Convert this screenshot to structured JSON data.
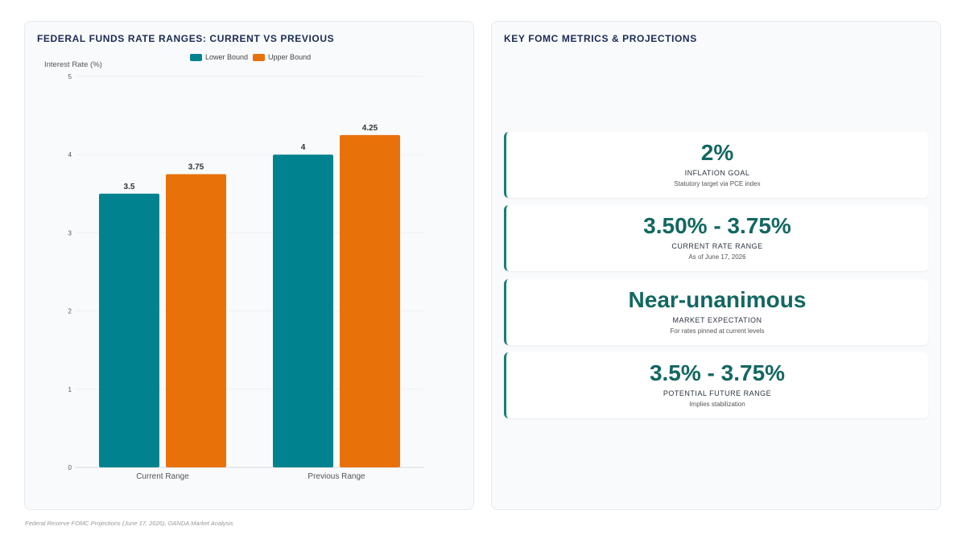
{
  "colors": {
    "lower_bound": "#00838f",
    "upper_bound": "#e8710a",
    "accent": "#1a7d77",
    "title": "#1c2a52"
  },
  "left_panel": {
    "title": "FEDERAL FUNDS RATE RANGES: CURRENT VS PREVIOUS"
  },
  "chart_data": {
    "type": "bar",
    "categories": [
      "Current Range",
      "Previous Range"
    ],
    "series": [
      {
        "name": "Lower Bound",
        "values": [
          3.5,
          4
        ]
      },
      {
        "name": "Upper Bound",
        "values": [
          3.75,
          4.25
        ]
      }
    ],
    "ylabel": "Interest Rate (%)",
    "xlabel": "",
    "ylim": [
      0,
      5
    ],
    "yticks": [
      "0",
      "1",
      "2",
      "3",
      "4",
      "5"
    ],
    "data_labels": [
      [
        "3.5",
        "4"
      ],
      [
        "3.75",
        "4.25"
      ]
    ],
    "legend_position": "top",
    "grid": true
  },
  "right_panel": {
    "title": "KEY FOMC METRICS & PROJECTIONS",
    "metrics": [
      {
        "value": "2%",
        "label": "INFLATION GOAL",
        "sub": "Statutory target via PCE index"
      },
      {
        "value": "3.50% - 3.75%",
        "label": "CURRENT RATE RANGE",
        "sub": "As of June 17, 2026"
      },
      {
        "value": "Near-unanimous",
        "label": "MARKET EXPECTATION",
        "sub": "For rates pinned at current levels"
      },
      {
        "value": "3.5% - 3.75%",
        "label": "POTENTIAL FUTURE RANGE",
        "sub": "Implies stabilization"
      }
    ]
  },
  "footer": {
    "source": "Federal Reserve FOMC Projections (June 17, 2026), OANDA Market Analysis"
  }
}
